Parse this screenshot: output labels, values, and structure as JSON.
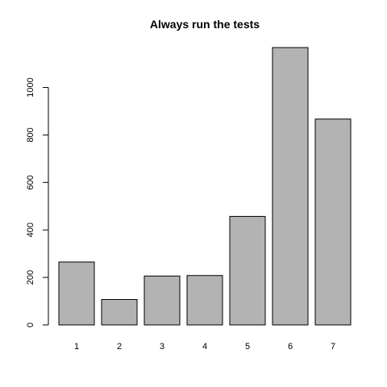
{
  "chart_data": {
    "type": "bar",
    "title": "Always run the tests",
    "xlabel": "",
    "ylabel": "",
    "categories": [
      "1",
      "2",
      "3",
      "4",
      "5",
      "6",
      "7"
    ],
    "values": [
      265,
      107,
      206,
      208,
      457,
      1168,
      867
    ],
    "ylim": [
      0,
      1168
    ],
    "yticks": [
      0,
      200,
      400,
      600,
      800,
      1000
    ],
    "bar_color": "#b3b3b3",
    "bar_border_color": "#000000",
    "grid": false,
    "legend": "none"
  }
}
